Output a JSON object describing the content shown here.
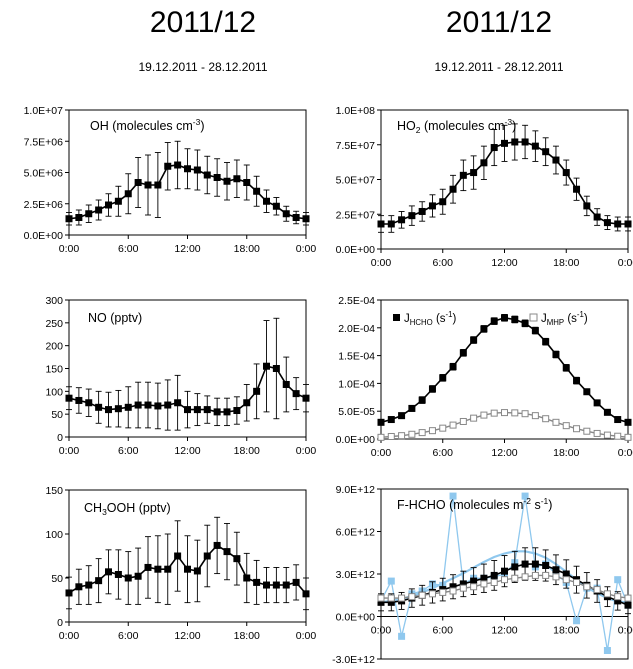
{
  "headers": {
    "left": {
      "title": "2011/12",
      "date_range": "19.12.2011 - 28.12.2011"
    },
    "right": {
      "title": "2011/12",
      "date_range": "19.12.2011 - 28.12.2011"
    }
  },
  "time_ticks": [
    "0:00",
    "6:00",
    "12:00",
    "18:00",
    "0:00"
  ],
  "chart_data": [
    {
      "id": "oh",
      "type": "line",
      "label": {
        "main": "OH (molecules cm",
        "sup": "-3",
        "tail": ")"
      },
      "x": [
        0,
        1,
        2,
        3,
        4,
        5,
        6,
        7,
        8,
        9,
        10,
        11,
        12,
        13,
        14,
        15,
        16,
        17,
        18,
        19,
        20,
        21,
        22,
        23,
        24
      ],
      "ylim": [
        0,
        10000000
      ],
      "yticks": [
        0,
        2500000,
        5000000,
        7500000,
        10000000
      ],
      "ytick_labels": [
        "0.0E+00",
        "2.5E+06",
        "5.0E+06",
        "7.5E+06",
        "1.0E+07"
      ],
      "series": [
        {
          "values": [
            1300000,
            1400000,
            1700000,
            2000000,
            2400000,
            2700000,
            3300000,
            4200000,
            4000000,
            4000000,
            5500000,
            5600000,
            5300000,
            5200000,
            4800000,
            4600000,
            4300000,
            4500000,
            4200000,
            3500000,
            2700000,
            2300000,
            1700000,
            1400000,
            1300000
          ],
          "err": [
            500000,
            600000,
            700000,
            800000,
            900000,
            1200000,
            1600000,
            2000000,
            2400000,
            2600000,
            1900000,
            1900000,
            1600000,
            1600000,
            1500000,
            1500000,
            1500000,
            1500000,
            1400000,
            1200000,
            900000,
            700000,
            600000,
            500000,
            500000
          ],
          "style": "filled-black"
        }
      ]
    },
    {
      "id": "ho2",
      "type": "line",
      "label": {
        "main": "HO",
        "sub": "2",
        "tail": " (molecules cm",
        "sup": "-3",
        "tail2": ")"
      },
      "x": [
        0,
        1,
        2,
        3,
        4,
        5,
        6,
        7,
        8,
        9,
        10,
        11,
        12,
        13,
        14,
        15,
        16,
        17,
        18,
        19,
        20,
        21,
        22,
        23,
        24
      ],
      "ylim": [
        0,
        100000000
      ],
      "yticks": [
        0,
        25000000,
        50000000,
        75000000,
        100000000
      ],
      "ytick_labels": [
        "0.0E+00",
        "2.5E+07",
        "5.0E+07",
        "7.5E+07",
        "1.0E+08"
      ],
      "series": [
        {
          "values": [
            18000000,
            18000000,
            21000000,
            24000000,
            27000000,
            31000000,
            34000000,
            43000000,
            53000000,
            55000000,
            62000000,
            73000000,
            76000000,
            77000000,
            77000000,
            74000000,
            70000000,
            64000000,
            55000000,
            43000000,
            31000000,
            23000000,
            19000000,
            18000000,
            18000000
          ],
          "err": [
            6000000,
            6000000,
            6000000,
            7000000,
            7000000,
            8000000,
            9000000,
            10000000,
            11000000,
            12000000,
            12000000,
            13000000,
            13000000,
            13000000,
            12000000,
            11000000,
            10000000,
            10000000,
            9000000,
            8000000,
            7000000,
            6000000,
            5000000,
            5000000,
            5000000
          ],
          "style": "filled-black"
        }
      ]
    },
    {
      "id": "no",
      "type": "line",
      "label": {
        "main": "NO (pptv)"
      },
      "x": [
        0,
        1,
        2,
        3,
        4,
        5,
        6,
        7,
        8,
        9,
        10,
        11,
        12,
        13,
        14,
        15,
        16,
        17,
        18,
        19,
        20,
        21,
        22,
        23,
        24
      ],
      "ylim": [
        0,
        300
      ],
      "yticks": [
        0,
        50,
        100,
        150,
        200,
        250,
        300
      ],
      "ytick_labels": [
        "0",
        "50",
        "100",
        "150",
        "200",
        "250",
        "300"
      ],
      "series": [
        {
          "values": [
            85,
            80,
            75,
            65,
            60,
            62,
            65,
            70,
            70,
            68,
            70,
            75,
            60,
            60,
            60,
            55,
            55,
            58,
            75,
            100,
            155,
            150,
            115,
            95,
            85
          ],
          "err": [
            25,
            28,
            30,
            35,
            38,
            40,
            45,
            50,
            50,
            50,
            55,
            60,
            40,
            35,
            30,
            30,
            30,
            30,
            40,
            60,
            100,
            110,
            60,
            35,
            30
          ],
          "style": "filled-black"
        }
      ]
    },
    {
      "id": "j",
      "type": "line",
      "labels": [
        {
          "main": "J",
          "sub": "HCHO",
          "tail": " (s",
          "sup": "-1",
          "tail2": ")"
        },
        {
          "main": "J",
          "sub": "MHP",
          "tail": " (s",
          "sup": "-1",
          "tail2": ")"
        }
      ],
      "x": [
        0,
        1,
        2,
        3,
        4,
        5,
        6,
        7,
        8,
        9,
        10,
        11,
        12,
        13,
        14,
        15,
        16,
        17,
        18,
        19,
        20,
        21,
        22,
        23,
        24
      ],
      "ylim": [
        0,
        0.00025
      ],
      "yticks": [
        0,
        5e-05,
        0.0001,
        0.00015,
        0.0002,
        0.00025
      ],
      "ytick_labels": [
        "0.0E+00",
        "5.0E-05",
        "1.0E-04",
        "1.5E-04",
        "2.0E-04",
        "2.5E-04"
      ],
      "series": [
        {
          "name": "J HCHO",
          "values": [
            3e-05,
            3.5e-05,
            4.2e-05,
            5.5e-05,
            7e-05,
            9e-05,
            0.00011,
            0.00013,
            0.000155,
            0.000178,
            0.000198,
            0.000212,
            0.000218,
            0.000215,
            0.000208,
            0.000195,
            0.000175,
            0.000152,
            0.000128,
            0.000105,
            8.5e-05,
            6.5e-05,
            4.8e-05,
            3.5e-05,
            3e-05
          ],
          "err": [
            4e-06,
            4e-06,
            5e-06,
            5e-06,
            6e-06,
            6e-06,
            6e-06,
            6e-06,
            6e-06,
            6e-06,
            6e-06,
            6e-06,
            6e-06,
            6e-06,
            6e-06,
            6e-06,
            6e-06,
            6e-06,
            6e-06,
            6e-06,
            5e-06,
            5e-06,
            5e-06,
            4e-06,
            4e-06
          ],
          "style": "filled-black"
        },
        {
          "name": "J MHP",
          "values": [
            3e-06,
            4.5e-06,
            6e-06,
            8.5e-06,
            1.15e-05,
            1.5e-05,
            1.95e-05,
            2.5e-05,
            3.15e-05,
            3.75e-05,
            4.3e-05,
            4.65e-05,
            4.75e-05,
            4.7e-05,
            4.55e-05,
            4.2e-05,
            3.65e-05,
            3e-05,
            2.4e-05,
            1.85e-05,
            1.4e-05,
            1e-05,
            7e-06,
            5e-06,
            3e-06
          ],
          "err": [
            2e-06,
            2e-06,
            2e-06,
            2e-06,
            2e-06,
            2e-06,
            2e-06,
            2e-06,
            2e-06,
            2e-06,
            2e-06,
            2e-06,
            2e-06,
            2e-06,
            2e-06,
            2e-06,
            2e-06,
            2e-06,
            2e-06,
            2e-06,
            2e-06,
            2e-06,
            2e-06,
            2e-06,
            2e-06
          ],
          "style": "open-grey"
        }
      ]
    },
    {
      "id": "ch3ooh",
      "type": "line",
      "label": {
        "main": "CH",
        "sub": "3",
        "tail": "OOH (pptv)"
      },
      "x": [
        0,
        1,
        2,
        3,
        4,
        5,
        6,
        7,
        8,
        9,
        10,
        11,
        12,
        13,
        14,
        15,
        16,
        17,
        18,
        19,
        20,
        21,
        22,
        23,
        24
      ],
      "ylim": [
        0,
        150
      ],
      "yticks": [
        0,
        50,
        100,
        150
      ],
      "ytick_labels": [
        "0",
        "50",
        "100",
        "150"
      ],
      "series": [
        {
          "values": [
            33,
            40,
            42,
            47,
            57,
            54,
            50,
            52,
            62,
            60,
            60,
            75,
            60,
            58,
            75,
            87,
            80,
            72,
            50,
            45,
            42,
            42,
            42,
            45,
            32
          ],
          "err": [
            18,
            20,
            22,
            25,
            25,
            28,
            30,
            32,
            35,
            38,
            40,
            40,
            38,
            35,
            35,
            32,
            32,
            30,
            28,
            25,
            20,
            20,
            20,
            20,
            18
          ],
          "style": "filled-black"
        }
      ]
    },
    {
      "id": "fhcho",
      "type": "line",
      "label": {
        "main": "F-HCHO (molecules m",
        "sup": "-2",
        "tail": " s",
        "sup2": "-1",
        "tail2": ")"
      },
      "x": [
        0,
        1,
        2,
        3,
        4,
        5,
        6,
        7,
        8,
        9,
        10,
        11,
        12,
        13,
        14,
        15,
        16,
        17,
        18,
        19,
        20,
        21,
        22,
        23,
        24
      ],
      "ylim": [
        -3000000000000,
        9000000000000
      ],
      "yticks": [
        -3000000000000,
        0,
        3000000000000,
        6000000000000,
        9000000000000
      ],
      "ytick_labels": [
        "-3.0E+12",
        "0.0E+00",
        "3.0E+12",
        "6.0E+12",
        "9.0E+12"
      ],
      "series": [
        {
          "name": "F-HCHO light blue",
          "values": [
            1100000000000,
            2500000000000,
            -1400000000000,
            1600000000000,
            1800000000000,
            2300000000000,
            2200000000000,
            8500000000000,
            2300000000000,
            2700000000000,
            2700000000000,
            2800000000000,
            3000000000000,
            3800000000000,
            8500000000000,
            3500000000000,
            3700000000000,
            3000000000000,
            2400000000000,
            -300000000000,
            2000000000000,
            2000000000000,
            -2400000000000,
            2600000000000,
            800000000000
          ],
          "style": "lightblue-square"
        },
        {
          "name": "F-HCHO fit",
          "values": [
            1000000000000,
            1100000000000,
            1250000000000,
            1450000000000,
            1700000000000,
            2000000000000,
            2350000000000,
            2700000000000,
            3050000000000,
            3450000000000,
            3850000000000,
            4200000000000,
            4450000000000,
            4600000000000,
            4600000000000,
            4450000000000,
            4150000000000,
            3700000000000,
            3150000000000,
            2600000000000,
            2050000000000,
            1650000000000,
            1300000000000,
            1050000000000,
            1000000000000
          ],
          "style": "lightblue-line"
        },
        {
          "name": "F-HCHO black",
          "values": [
            1000000000000,
            1000000000000,
            1100000000000,
            1300000000000,
            1500000000000,
            1700000000000,
            1900000000000,
            2100000000000,
            2300000000000,
            2500000000000,
            2700000000000,
            2900000000000,
            3200000000000,
            3500000000000,
            3700000000000,
            3700000000000,
            3600000000000,
            3300000000000,
            3000000000000,
            2600000000000,
            2200000000000,
            1800000000000,
            1400000000000,
            1100000000000,
            800000000000
          ],
          "err": [
            600000000000,
            600000000000,
            600000000000,
            650000000000,
            700000000000,
            750000000000,
            800000000000,
            850000000000,
            900000000000,
            950000000000,
            1000000000000,
            1050000000000,
            1100000000000,
            1100000000000,
            1150000000000,
            1150000000000,
            1100000000000,
            1050000000000,
            1000000000000,
            950000000000,
            900000000000,
            800000000000,
            700000000000,
            650000000000,
            600000000000
          ],
          "style": "filled-black"
        },
        {
          "name": "F-HCHO grey",
          "values": [
            1300000000000,
            1300000000000,
            1300000000000,
            1400000000000,
            1500000000000,
            1600000000000,
            1700000000000,
            1800000000000,
            2000000000000,
            2100000000000,
            2300000000000,
            2400000000000,
            2600000000000,
            2700000000000,
            2800000000000,
            2900000000000,
            2900000000000,
            2800000000000,
            2600000000000,
            2400000000000,
            2100000000000,
            1900000000000,
            1600000000000,
            1400000000000,
            1300000000000
          ],
          "style": "open-grey"
        }
      ]
    }
  ]
}
